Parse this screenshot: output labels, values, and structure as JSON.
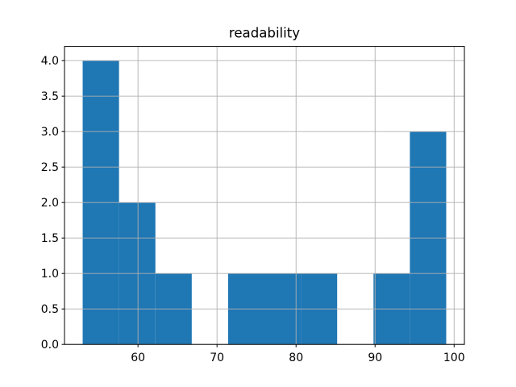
{
  "chart_data": {
    "type": "bar",
    "subtype": "histogram",
    "title": "readability",
    "bin_edges": [
      53.0,
      57.6,
      62.2,
      66.8,
      71.4,
      76.0,
      80.6,
      85.2,
      89.8,
      94.4,
      99.0
    ],
    "counts": [
      4,
      2,
      1,
      0,
      1,
      1,
      1,
      0,
      1,
      3
    ],
    "xticks": [
      60,
      70,
      80,
      90,
      100
    ],
    "xtick_labels": [
      "60",
      "70",
      "80",
      "90",
      "100"
    ],
    "yticks": [
      0.0,
      0.5,
      1.0,
      1.5,
      2.0,
      2.5,
      3.0,
      3.5,
      4.0
    ],
    "ytick_labels": [
      "0.0",
      "0.5",
      "1.0",
      "1.5",
      "2.0",
      "2.5",
      "3.0",
      "3.5",
      "4.0"
    ],
    "xlim": [
      50.7,
      101.3
    ],
    "ylim": [
      0,
      4.2
    ],
    "xlabel": "",
    "ylabel": "",
    "grid": true,
    "grid_above_bars": true,
    "legend": false,
    "bar_color": "#1f77b4",
    "grid_color": "#b0b0b0",
    "spine_color": "#000000",
    "background_color": "#ffffff"
  }
}
